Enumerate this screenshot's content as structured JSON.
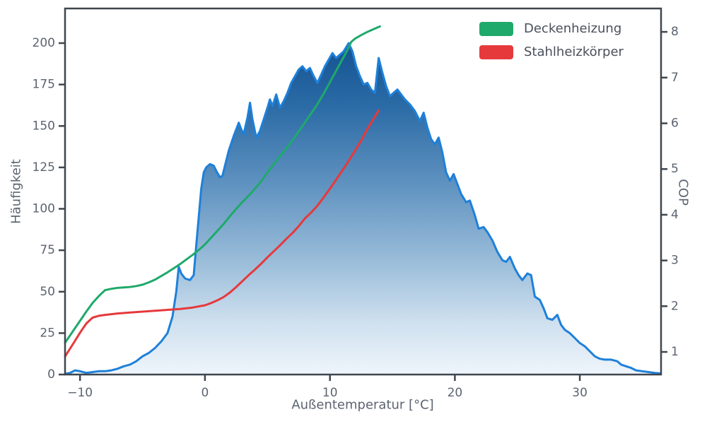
{
  "figure": {
    "background": "#ffffff"
  },
  "colors": {
    "axis_border": "#3f464e",
    "tick_text": "#5c6470",
    "label_text": "#5c6470",
    "legend_text": "#49505c",
    "histogram_line": "#1e80d9",
    "green_line": "#1fa96b",
    "red_line": "#e6393c"
  },
  "chart_data": {
    "type": "area",
    "title": "",
    "xlabel": "Außentemperatur [°C]",
    "ylabel_left": "Häufigkeit",
    "ylabel_right": "COP",
    "legend_position": "upper right",
    "axes": {
      "xlim": [
        -11.2,
        36.5
      ],
      "ylim_left": [
        0,
        220.9
      ],
      "ylim_right": [
        0.505,
        8.512
      ],
      "x_ticks": [
        -10,
        0,
        10,
        20,
        30
      ],
      "x_tick_labels": [
        "−10",
        "0",
        "10",
        "20",
        "30"
      ],
      "y_left_ticks": [
        0,
        25,
        50,
        75,
        100,
        125,
        150,
        175,
        200
      ],
      "y_right_ticks": [
        1,
        2,
        3,
        4,
        5,
        6,
        7,
        8
      ],
      "grid": false
    },
    "histogram": {
      "name": "Häufigkeit",
      "axis": "left",
      "line_color": "#1e80d9",
      "fill_gradient_stops": [
        [
          0.0,
          "#0e4d8c"
        ],
        [
          0.22,
          "#2a6aa5"
        ],
        [
          0.45,
          "#5f92c0"
        ],
        [
          0.68,
          "#9cbeda"
        ],
        [
          0.85,
          "#cfe0ef"
        ],
        [
          1.0,
          "#eff5fb"
        ]
      ],
      "points": [
        [
          -11.2,
          0.5
        ],
        [
          -10.8,
          1
        ],
        [
          -10.4,
          2.5
        ],
        [
          -10.0,
          2
        ],
        [
          -9.5,
          1
        ],
        [
          -9.0,
          1.5
        ],
        [
          -8.5,
          2
        ],
        [
          -8.0,
          2
        ],
        [
          -7.5,
          2.5
        ],
        [
          -7.0,
          3.5
        ],
        [
          -6.5,
          5
        ],
        [
          -6.0,
          6
        ],
        [
          -5.5,
          8
        ],
        [
          -5.0,
          11
        ],
        [
          -4.5,
          13
        ],
        [
          -4.0,
          16
        ],
        [
          -3.5,
          20
        ],
        [
          -3.0,
          25
        ],
        [
          -2.6,
          35
        ],
        [
          -2.3,
          50
        ],
        [
          -2.1,
          65
        ],
        [
          -1.9,
          61
        ],
        [
          -1.6,
          58
        ],
        [
          -1.2,
          57
        ],
        [
          -0.9,
          60
        ],
        [
          -0.7,
          78
        ],
        [
          -0.5,
          95
        ],
        [
          -0.3,
          112
        ],
        [
          -0.1,
          122
        ],
        [
          0.1,
          125
        ],
        [
          0.4,
          127
        ],
        [
          0.7,
          126
        ],
        [
          0.9,
          123
        ],
        [
          1.2,
          119
        ],
        [
          1.4,
          120
        ],
        [
          1.6,
          126
        ],
        [
          1.9,
          135
        ],
        [
          2.3,
          144
        ],
        [
          2.7,
          152
        ],
        [
          2.9,
          148
        ],
        [
          3.1,
          145
        ],
        [
          3.4,
          155
        ],
        [
          3.6,
          164
        ],
        [
          3.8,
          154
        ],
        [
          4.1,
          143
        ],
        [
          4.4,
          147
        ],
        [
          4.7,
          154
        ],
        [
          5.0,
          161
        ],
        [
          5.2,
          166
        ],
        [
          5.4,
          162
        ],
        [
          5.7,
          169
        ],
        [
          6.0,
          161
        ],
        [
          6.3,
          165
        ],
        [
          6.6,
          170
        ],
        [
          6.9,
          176
        ],
        [
          7.2,
          180
        ],
        [
          7.5,
          184
        ],
        [
          7.8,
          186
        ],
        [
          8.1,
          183
        ],
        [
          8.4,
          185
        ],
        [
          8.7,
          180
        ],
        [
          9.0,
          176
        ],
        [
          9.3,
          181
        ],
        [
          9.6,
          186
        ],
        [
          9.9,
          190
        ],
        [
          10.2,
          194
        ],
        [
          10.5,
          191
        ],
        [
          10.8,
          193
        ],
        [
          11.1,
          195
        ],
        [
          11.5,
          200
        ],
        [
          11.8,
          195
        ],
        [
          12.1,
          186
        ],
        [
          12.4,
          180
        ],
        [
          12.7,
          175
        ],
        [
          13.0,
          176
        ],
        [
          13.3,
          172
        ],
        [
          13.6,
          170
        ],
        [
          13.9,
          191
        ],
        [
          14.2,
          182
        ],
        [
          14.5,
          174
        ],
        [
          14.8,
          168
        ],
        [
          15.1,
          170
        ],
        [
          15.4,
          172
        ],
        [
          15.7,
          169
        ],
        [
          16.0,
          166
        ],
        [
          16.4,
          163
        ],
        [
          16.8,
          159
        ],
        [
          17.2,
          153
        ],
        [
          17.5,
          158
        ],
        [
          17.8,
          149
        ],
        [
          18.1,
          142
        ],
        [
          18.4,
          139
        ],
        [
          18.7,
          143
        ],
        [
          19.0,
          134
        ],
        [
          19.3,
          122
        ],
        [
          19.6,
          117
        ],
        [
          19.9,
          121
        ],
        [
          20.2,
          115
        ],
        [
          20.5,
          109
        ],
        [
          20.9,
          104
        ],
        [
          21.2,
          105
        ],
        [
          21.6,
          96
        ],
        [
          21.9,
          88
        ],
        [
          22.3,
          89
        ],
        [
          22.6,
          86
        ],
        [
          23.0,
          81
        ],
        [
          23.4,
          74
        ],
        [
          23.8,
          69
        ],
        [
          24.1,
          68
        ],
        [
          24.4,
          71
        ],
        [
          24.8,
          64
        ],
        [
          25.1,
          60
        ],
        [
          25.4,
          57
        ],
        [
          25.8,
          61
        ],
        [
          26.1,
          60
        ],
        [
          26.4,
          47
        ],
        [
          26.8,
          45
        ],
        [
          27.1,
          40
        ],
        [
          27.4,
          34
        ],
        [
          27.8,
          33
        ],
        [
          28.2,
          36
        ],
        [
          28.5,
          30
        ],
        [
          28.8,
          27
        ],
        [
          29.2,
          25
        ],
        [
          29.6,
          22
        ],
        [
          30.0,
          19
        ],
        [
          30.4,
          17
        ],
        [
          30.8,
          14
        ],
        [
          31.2,
          11
        ],
        [
          31.6,
          9.5
        ],
        [
          32.0,
          9
        ],
        [
          32.5,
          9
        ],
        [
          33.0,
          8
        ],
        [
          33.3,
          6
        ],
        [
          33.7,
          5
        ],
        [
          34.1,
          4
        ],
        [
          34.5,
          2.5
        ],
        [
          35.0,
          2
        ],
        [
          35.5,
          1.5
        ],
        [
          36.0,
          1
        ],
        [
          36.45,
          0.7
        ]
      ]
    },
    "series": [
      {
        "name": "Deckenheizung",
        "axis": "right",
        "color": "#1fa96b",
        "points": [
          [
            -11.2,
            1.2
          ],
          [
            -10.5,
            1.48
          ],
          [
            -10.0,
            1.68
          ],
          [
            -9.5,
            1.88
          ],
          [
            -9.0,
            2.07
          ],
          [
            -8.5,
            2.22
          ],
          [
            -8.0,
            2.35
          ],
          [
            -7.5,
            2.38
          ],
          [
            -7.0,
            2.4
          ],
          [
            -6.5,
            2.41
          ],
          [
            -6.0,
            2.42
          ],
          [
            -5.5,
            2.44
          ],
          [
            -5.0,
            2.47
          ],
          [
            -4.5,
            2.52
          ],
          [
            -4.0,
            2.58
          ],
          [
            -3.5,
            2.66
          ],
          [
            -3.0,
            2.74
          ],
          [
            -2.5,
            2.83
          ],
          [
            -2.0,
            2.92
          ],
          [
            -1.5,
            3.02
          ],
          [
            -1.0,
            3.12
          ],
          [
            -0.5,
            3.23
          ],
          [
            0.0,
            3.35
          ],
          [
            0.5,
            3.5
          ],
          [
            1.0,
            3.65
          ],
          [
            1.5,
            3.8
          ],
          [
            2.0,
            3.97
          ],
          [
            2.5,
            4.13
          ],
          [
            3.0,
            4.28
          ],
          [
            3.5,
            4.42
          ],
          [
            4.0,
            4.57
          ],
          [
            4.5,
            4.73
          ],
          [
            5.0,
            4.93
          ],
          [
            5.5,
            5.1
          ],
          [
            6.0,
            5.28
          ],
          [
            6.5,
            5.45
          ],
          [
            7.0,
            5.62
          ],
          [
            7.5,
            5.82
          ],
          [
            8.0,
            6.02
          ],
          [
            8.5,
            6.22
          ],
          [
            9.0,
            6.42
          ],
          [
            9.5,
            6.65
          ],
          [
            10.0,
            6.9
          ],
          [
            10.5,
            7.15
          ],
          [
            11.0,
            7.4
          ],
          [
            11.4,
            7.6
          ],
          [
            11.7,
            7.78
          ],
          [
            12.0,
            7.85
          ],
          [
            12.5,
            7.93
          ],
          [
            13.0,
            8.0
          ],
          [
            13.5,
            8.06
          ],
          [
            14.0,
            8.12
          ]
        ]
      },
      {
        "name": "Stahlheizkörper",
        "axis": "right",
        "color": "#e6393c",
        "points": [
          [
            -11.2,
            0.9
          ],
          [
            -10.5,
            1.2
          ],
          [
            -10.0,
            1.42
          ],
          [
            -9.5,
            1.62
          ],
          [
            -9.0,
            1.75
          ],
          [
            -8.5,
            1.79
          ],
          [
            -8.0,
            1.81
          ],
          [
            -7.0,
            1.84
          ],
          [
            -6.0,
            1.86
          ],
          [
            -5.0,
            1.88
          ],
          [
            -4.0,
            1.9
          ],
          [
            -3.0,
            1.92
          ],
          [
            -2.0,
            1.94
          ],
          [
            -1.0,
            1.97
          ],
          [
            0.0,
            2.02
          ],
          [
            0.5,
            2.07
          ],
          [
            1.0,
            2.13
          ],
          [
            1.5,
            2.2
          ],
          [
            2.0,
            2.3
          ],
          [
            2.5,
            2.42
          ],
          [
            3.0,
            2.55
          ],
          [
            3.5,
            2.68
          ],
          [
            4.0,
            2.8
          ],
          [
            4.5,
            2.93
          ],
          [
            5.0,
            3.07
          ],
          [
            5.5,
            3.2
          ],
          [
            6.0,
            3.33
          ],
          [
            6.5,
            3.47
          ],
          [
            7.0,
            3.6
          ],
          [
            7.5,
            3.75
          ],
          [
            8.0,
            3.92
          ],
          [
            8.5,
            4.05
          ],
          [
            9.0,
            4.2
          ],
          [
            9.5,
            4.38
          ],
          [
            10.0,
            4.57
          ],
          [
            10.5,
            4.77
          ],
          [
            11.0,
            4.97
          ],
          [
            11.5,
            5.18
          ],
          [
            12.0,
            5.4
          ],
          [
            12.5,
            5.62
          ],
          [
            13.0,
            5.88
          ],
          [
            13.5,
            6.1
          ],
          [
            13.9,
            6.28
          ]
        ]
      }
    ]
  }
}
